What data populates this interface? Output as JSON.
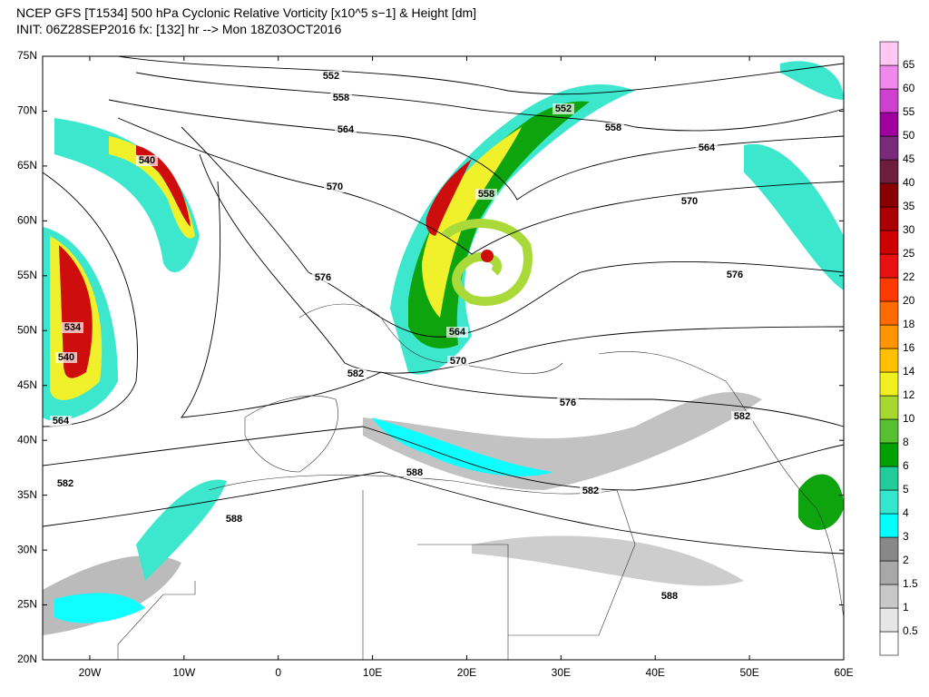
{
  "header": {
    "line1": "NCEP GFS [T1534] 500 hPa Cyclonic Relative Vorticity [x10^5 s−1] & Height [dm]",
    "line2": "INIT: 06Z28SEP2016 fx: [132] hr --> Mon 18Z03OCT2016"
  },
  "latitude_labels": [
    "75N",
    "70N",
    "65N",
    "60N",
    "55N",
    "50N",
    "45N",
    "40N",
    "35N",
    "30N",
    "25N",
    "20N"
  ],
  "longitude_labels": [
    "20W",
    "10W",
    "0",
    "10E",
    "20E",
    "30E",
    "40E",
    "50E",
    "60E"
  ],
  "contour_labels": [
    "552",
    "558",
    "564",
    "570",
    "576",
    "540",
    "534",
    "540",
    "564",
    "582",
    "582",
    "588",
    "588",
    "552",
    "558",
    "564",
    "570",
    "576",
    "558",
    "564",
    "570",
    "576",
    "582",
    "582",
    "588"
  ],
  "colorbar": {
    "labels": [
      "0.5",
      "1",
      "1.5",
      "2",
      "3",
      "4",
      "5",
      "6",
      "8",
      "10",
      "12",
      "14",
      "16",
      "18",
      "20",
      "22",
      "25",
      "30",
      "35",
      "40",
      "45",
      "50",
      "55",
      "60",
      "65"
    ],
    "colors": [
      "#ffffff",
      "#e6e6e6",
      "#c8c8c8",
      "#a8a8a8",
      "#888888",
      "#00ffff",
      "#33e6cc",
      "#22cc99",
      "#00a000",
      "#55c030",
      "#a6d830",
      "#f0f020",
      "#ffc000",
      "#ff9500",
      "#ff6a00",
      "#ff3a00",
      "#e81010",
      "#cc0000",
      "#aa0000",
      "#880000",
      "#6e1e3c",
      "#7a2a7a",
      "#a000a0",
      "#d040d0",
      "#f088ee",
      "#ffc8f4"
    ]
  }
}
